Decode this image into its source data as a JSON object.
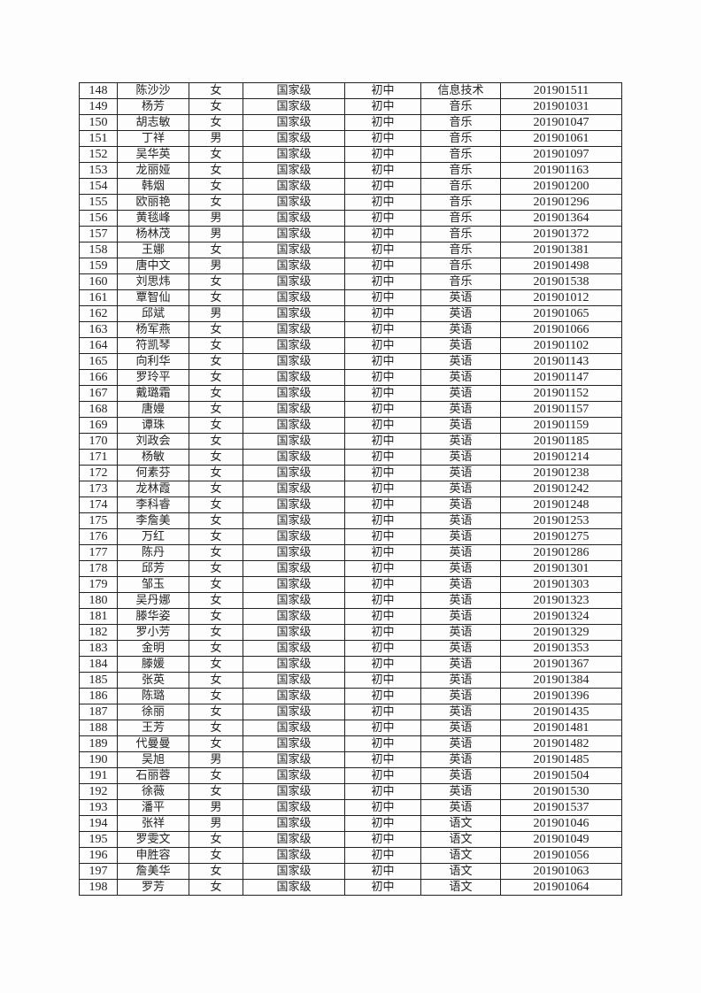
{
  "table": {
    "rows": [
      [
        "148",
        "陈沙沙",
        "女",
        "国家级",
        "初中",
        "信息技术",
        "201901511"
      ],
      [
        "149",
        "杨芳",
        "女",
        "国家级",
        "初中",
        "音乐",
        "201901031"
      ],
      [
        "150",
        "胡志敏",
        "女",
        "国家级",
        "初中",
        "音乐",
        "201901047"
      ],
      [
        "151",
        "丁祥",
        "男",
        "国家级",
        "初中",
        "音乐",
        "201901061"
      ],
      [
        "152",
        "吴华英",
        "女",
        "国家级",
        "初中",
        "音乐",
        "201901097"
      ],
      [
        "153",
        "龙丽娅",
        "女",
        "国家级",
        "初中",
        "音乐",
        "201901163"
      ],
      [
        "154",
        "韩烟",
        "女",
        "国家级",
        "初中",
        "音乐",
        "201901200"
      ],
      [
        "155",
        "欧丽艳",
        "女",
        "国家级",
        "初中",
        "音乐",
        "201901296"
      ],
      [
        "156",
        "黄毯峰",
        "男",
        "国家级",
        "初中",
        "音乐",
        "201901364"
      ],
      [
        "157",
        "杨林茂",
        "男",
        "国家级",
        "初中",
        "音乐",
        "201901372"
      ],
      [
        "158",
        "王娜",
        "女",
        "国家级",
        "初中",
        "音乐",
        "201901381"
      ],
      [
        "159",
        "唐中文",
        "男",
        "国家级",
        "初中",
        "音乐",
        "201901498"
      ],
      [
        "160",
        "刘思炜",
        "女",
        "国家级",
        "初中",
        "音乐",
        "201901538"
      ],
      [
        "161",
        "覃智仙",
        "女",
        "国家级",
        "初中",
        "英语",
        "201901012"
      ],
      [
        "162",
        "邱斌",
        "男",
        "国家级",
        "初中",
        "英语",
        "201901065"
      ],
      [
        "163",
        "杨军燕",
        "女",
        "国家级",
        "初中",
        "英语",
        "201901066"
      ],
      [
        "164",
        "符凯琴",
        "女",
        "国家级",
        "初中",
        "英语",
        "201901102"
      ],
      [
        "165",
        "向利华",
        "女",
        "国家级",
        "初中",
        "英语",
        "201901143"
      ],
      [
        "166",
        "罗玲平",
        "女",
        "国家级",
        "初中",
        "英语",
        "201901147"
      ],
      [
        "167",
        "戴璐霜",
        "女",
        "国家级",
        "初中",
        "英语",
        "201901152"
      ],
      [
        "168",
        "唐嫚",
        "女",
        "国家级",
        "初中",
        "英语",
        "201901157"
      ],
      [
        "169",
        "谭珠",
        "女",
        "国家级",
        "初中",
        "英语",
        "201901159"
      ],
      [
        "170",
        "刘政会",
        "女",
        "国家级",
        "初中",
        "英语",
        "201901185"
      ],
      [
        "171",
        "杨敏",
        "女",
        "国家级",
        "初中",
        "英语",
        "201901214"
      ],
      [
        "172",
        "何素芬",
        "女",
        "国家级",
        "初中",
        "英语",
        "201901238"
      ],
      [
        "173",
        "龙林霞",
        "女",
        "国家级",
        "初中",
        "英语",
        "201901242"
      ],
      [
        "174",
        "李科睿",
        "女",
        "国家级",
        "初中",
        "英语",
        "201901248"
      ],
      [
        "175",
        "李詹美",
        "女",
        "国家级",
        "初中",
        "英语",
        "201901253"
      ],
      [
        "176",
        "万红",
        "女",
        "国家级",
        "初中",
        "英语",
        "201901275"
      ],
      [
        "177",
        "陈丹",
        "女",
        "国家级",
        "初中",
        "英语",
        "201901286"
      ],
      [
        "178",
        "邱芳",
        "女",
        "国家级",
        "初中",
        "英语",
        "201901301"
      ],
      [
        "179",
        "邹玉",
        "女",
        "国家级",
        "初中",
        "英语",
        "201901303"
      ],
      [
        "180",
        "吴丹娜",
        "女",
        "国家级",
        "初中",
        "英语",
        "201901323"
      ],
      [
        "181",
        "滕华姿",
        "女",
        "国家级",
        "初中",
        "英语",
        "201901324"
      ],
      [
        "182",
        "罗小芳",
        "女",
        "国家级",
        "初中",
        "英语",
        "201901329"
      ],
      [
        "183",
        "金明",
        "女",
        "国家级",
        "初中",
        "英语",
        "201901353"
      ],
      [
        "184",
        "滕媛",
        "女",
        "国家级",
        "初中",
        "英语",
        "201901367"
      ],
      [
        "185",
        "张英",
        "女",
        "国家级",
        "初中",
        "英语",
        "201901384"
      ],
      [
        "186",
        "陈璐",
        "女",
        "国家级",
        "初中",
        "英语",
        "201901396"
      ],
      [
        "187",
        "徐丽",
        "女",
        "国家级",
        "初中",
        "英语",
        "201901435"
      ],
      [
        "188",
        "王芳",
        "女",
        "国家级",
        "初中",
        "英语",
        "201901481"
      ],
      [
        "189",
        "代曼曼",
        "女",
        "国家级",
        "初中",
        "英语",
        "201901482"
      ],
      [
        "190",
        "吴旭",
        "男",
        "国家级",
        "初中",
        "英语",
        "201901485"
      ],
      [
        "191",
        "石丽蓉",
        "女",
        "国家级",
        "初中",
        "英语",
        "201901504"
      ],
      [
        "192",
        "徐薇",
        "女",
        "国家级",
        "初中",
        "英语",
        "201901530"
      ],
      [
        "193",
        "潘平",
        "男",
        "国家级",
        "初中",
        "英语",
        "201901537"
      ],
      [
        "194",
        "张祥",
        "男",
        "国家级",
        "初中",
        "语文",
        "201901046"
      ],
      [
        "195",
        "罗雯文",
        "女",
        "国家级",
        "初中",
        "语文",
        "201901049"
      ],
      [
        "196",
        "申胜容",
        "女",
        "国家级",
        "初中",
        "语文",
        "201901056"
      ],
      [
        "197",
        "詹美华",
        "女",
        "国家级",
        "初中",
        "语文",
        "201901063"
      ],
      [
        "198",
        "罗芳",
        "女",
        "国家级",
        "初中",
        "语文",
        "201901064"
      ]
    ]
  }
}
